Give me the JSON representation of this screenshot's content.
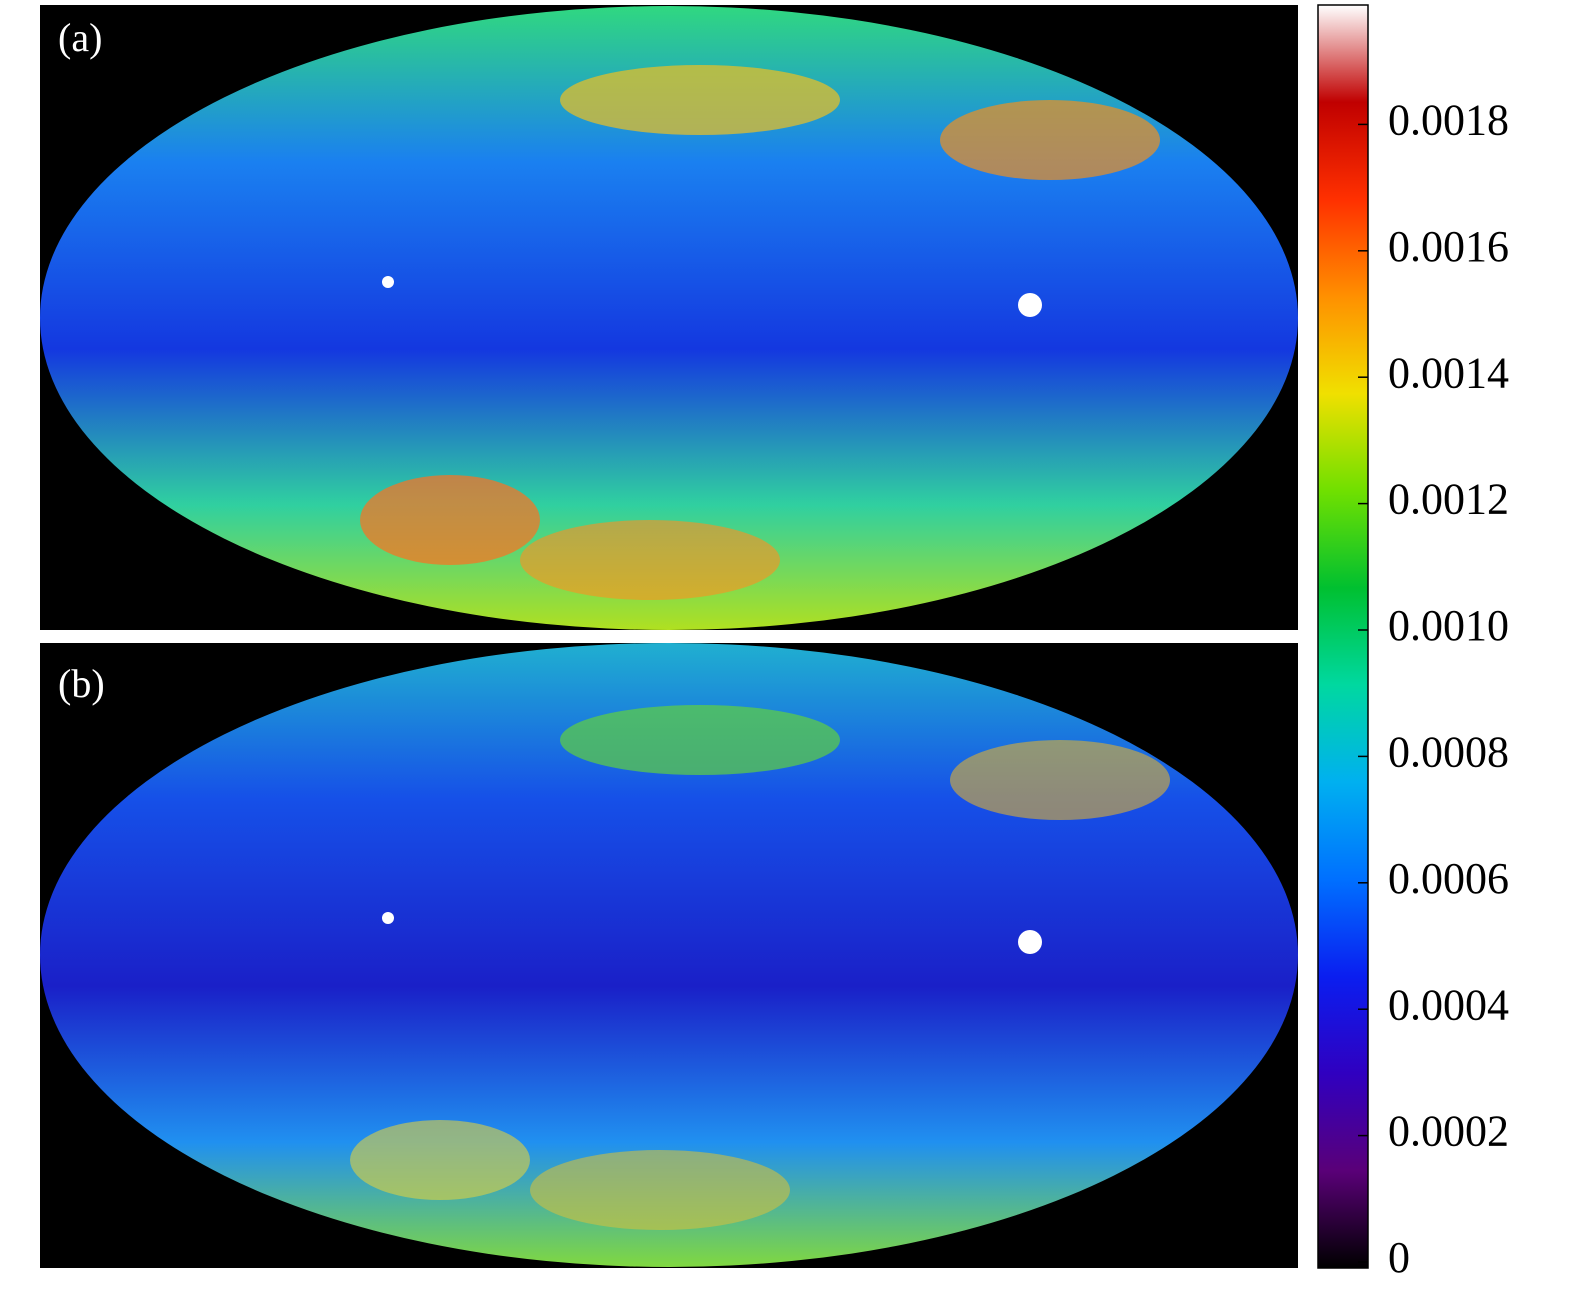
{
  "chart_data": {
    "type": "skymap",
    "panels": [
      "(a)",
      "(b)"
    ],
    "colorbar": {
      "range": [
        0,
        0.002
      ],
      "ticks": [
        0,
        0.0002,
        0.0004,
        0.0006,
        0.0008,
        {
          "value": 0.001,
          "label": "0.0010"
        },
        0.0012,
        0.0014,
        0.0016,
        0.0018
      ],
      "colormap": [
        "#000000",
        "#5a0078",
        "#3000c0",
        "#0a1ef0",
        "#0070ff",
        "#00b0f0",
        "#00d8a0",
        "#00c030",
        "#70e000",
        "#f0e000",
        "#ff9000",
        "#ff3000",
        "#c00000",
        "#ffffff"
      ]
    }
  }
}
